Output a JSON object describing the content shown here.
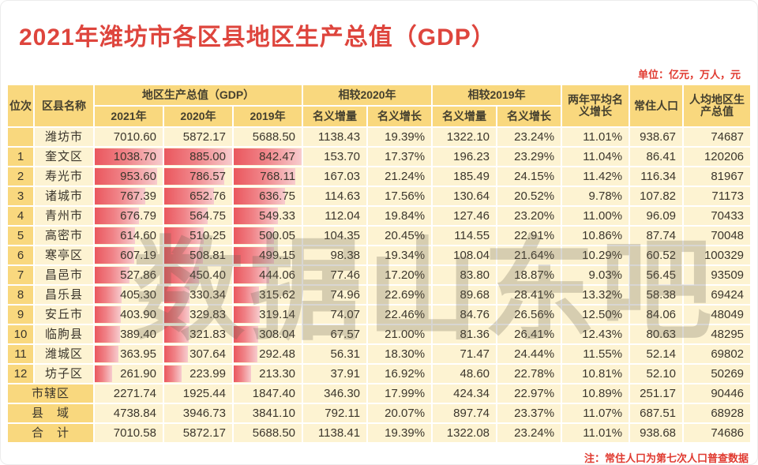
{
  "page": {
    "title": "2021年潍坊市各区县地区生产总值（GDP）",
    "unit_note": "单位：亿元，万人，元",
    "footnote": "注：常住人口为第七次人口普查数据",
    "watermark": "数据山东吧",
    "colors": {
      "accent_red": "#de453d",
      "header_yellow": "#f9d87e",
      "cell_cream": "#fdf3d2",
      "bar_gradient_start": "#ea575e",
      "bar_gradient_end": "#f7ccce",
      "text": "#3b362c"
    }
  },
  "table": {
    "headers": {
      "rank": "位次",
      "name": "区县名称",
      "gdp_group": "地区生产总值（GDP）",
      "gdp_years": [
        "2021年",
        "2020年",
        "2019年"
      ],
      "vs2020_group": "相较2020年",
      "vs2019_group": "相较2019年",
      "increment": "名义增量",
      "growth": "名义增长",
      "two_year_avg": "两年平均名义增长",
      "population": "常住人口",
      "per_capita": "人均地区生产总值"
    },
    "rows": [
      {
        "type": "city",
        "rank": "",
        "name": "潍坊市",
        "gdp": [
          "7010.60",
          "5872.17",
          "5688.50"
        ],
        "inc2020": "1138.43",
        "gr2020": "19.39%",
        "inc2019": "1322.10",
        "gr2019": "23.24%",
        "avg": "11.01%",
        "pop": "938.67",
        "percap": "74687"
      },
      {
        "type": "district",
        "rank": "1",
        "name": "奎文区",
        "gdp": [
          "1038.70",
          "885.00",
          "842.47"
        ],
        "inc2020": "153.70",
        "gr2020": "17.37%",
        "inc2019": "196.23",
        "gr2019": "23.29%",
        "avg": "11.04%",
        "pop": "86.41",
        "percap": "120206"
      },
      {
        "type": "district",
        "rank": "2",
        "name": "寿光市",
        "gdp": [
          "953.60",
          "786.57",
          "768.11"
        ],
        "inc2020": "167.03",
        "gr2020": "21.24%",
        "inc2019": "185.49",
        "gr2019": "24.15%",
        "avg": "11.42%",
        "pop": "116.34",
        "percap": "81967"
      },
      {
        "type": "district",
        "rank": "3",
        "name": "诸城市",
        "gdp": [
          "767.39",
          "652.76",
          "636.75"
        ],
        "inc2020": "114.63",
        "gr2020": "17.56%",
        "inc2019": "130.64",
        "gr2019": "20.52%",
        "avg": "9.78%",
        "pop": "107.82",
        "percap": "71173"
      },
      {
        "type": "district",
        "rank": "4",
        "name": "青州市",
        "gdp": [
          "676.79",
          "564.75",
          "549.33"
        ],
        "inc2020": "112.04",
        "gr2020": "19.84%",
        "inc2019": "127.46",
        "gr2019": "23.20%",
        "avg": "11.00%",
        "pop": "96.09",
        "percap": "70433"
      },
      {
        "type": "district",
        "rank": "5",
        "name": "高密市",
        "gdp": [
          "614.60",
          "510.25",
          "500.05"
        ],
        "inc2020": "104.35",
        "gr2020": "20.45%",
        "inc2019": "114.55",
        "gr2019": "22.91%",
        "avg": "10.86%",
        "pop": "87.74",
        "percap": "70048"
      },
      {
        "type": "district",
        "rank": "6",
        "name": "寒亭区",
        "gdp": [
          "607.19",
          "508.81",
          "499.15"
        ],
        "inc2020": "98.38",
        "gr2020": "19.34%",
        "inc2019": "108.04",
        "gr2019": "21.64%",
        "avg": "10.29%",
        "pop": "60.52",
        "percap": "100329"
      },
      {
        "type": "district",
        "rank": "7",
        "name": "昌邑市",
        "gdp": [
          "527.86",
          "450.40",
          "444.06"
        ],
        "inc2020": "77.46",
        "gr2020": "17.20%",
        "inc2019": "83.80",
        "gr2019": "18.87%",
        "avg": "9.03%",
        "pop": "56.45",
        "percap": "93509"
      },
      {
        "type": "district",
        "rank": "8",
        "name": "昌乐县",
        "gdp": [
          "405.30",
          "330.34",
          "315.62"
        ],
        "inc2020": "74.96",
        "gr2020": "22.69%",
        "inc2019": "89.68",
        "gr2019": "28.41%",
        "avg": "13.32%",
        "pop": "58.38",
        "percap": "69424"
      },
      {
        "type": "district",
        "rank": "9",
        "name": "安丘市",
        "gdp": [
          "403.90",
          "329.83",
          "319.14"
        ],
        "inc2020": "74.07",
        "gr2020": "22.46%",
        "inc2019": "84.76",
        "gr2019": "26.56%",
        "avg": "12.50%",
        "pop": "84.06",
        "percap": "48049"
      },
      {
        "type": "district",
        "rank": "10",
        "name": "临朐县",
        "gdp": [
          "389.40",
          "321.83",
          "308.04"
        ],
        "inc2020": "67.57",
        "gr2020": "21.00%",
        "inc2019": "81.36",
        "gr2019": "26.41%",
        "avg": "12.43%",
        "pop": "80.63",
        "percap": "48295"
      },
      {
        "type": "district",
        "rank": "11",
        "name": "潍城区",
        "gdp": [
          "363.95",
          "307.64",
          "292.48"
        ],
        "inc2020": "56.31",
        "gr2020": "18.30%",
        "inc2019": "71.47",
        "gr2019": "24.44%",
        "avg": "11.55%",
        "pop": "52.14",
        "percap": "69802"
      },
      {
        "type": "district",
        "rank": "12",
        "name": "坊子区",
        "gdp": [
          "261.90",
          "223.99",
          "213.30"
        ],
        "inc2020": "37.91",
        "gr2020": "16.92%",
        "inc2019": "48.60",
        "gr2019": "22.78%",
        "avg": "10.81%",
        "pop": "52.10",
        "percap": "50269"
      },
      {
        "type": "summary",
        "rank": "",
        "name": "市辖区",
        "gdp": [
          "2271.74",
          "1925.44",
          "1847.40"
        ],
        "inc2020": "346.30",
        "gr2020": "17.99%",
        "inc2019": "424.34",
        "gr2019": "22.97%",
        "avg": "10.89%",
        "pop": "251.17",
        "percap": "90446"
      },
      {
        "type": "summary",
        "rank": "",
        "name": "县　域",
        "gdp": [
          "4738.84",
          "3946.73",
          "3841.10"
        ],
        "inc2020": "792.11",
        "gr2020": "20.07%",
        "inc2019": "897.74",
        "gr2019": "23.37%",
        "avg": "11.07%",
        "pop": "687.51",
        "percap": "68928"
      },
      {
        "type": "summary",
        "rank": "",
        "name": "合　计",
        "gdp": [
          "7010.58",
          "5872.17",
          "5688.50"
        ],
        "inc2020": "1138.41",
        "gr2020": "19.39%",
        "inc2019": "1322.08",
        "gr2019": "23.24%",
        "avg": "11.01%",
        "pop": "938.68",
        "percap": "74686"
      }
    ]
  },
  "chart_data": {
    "type": "table",
    "title": "2021年潍坊市各区县地区生产总值（GDP）",
    "bar_columns": [
      "2021年",
      "2020年",
      "2019年"
    ],
    "bar_scale_note": "行内数据条宽度与各列最大值（奎文区）成比例"
  }
}
